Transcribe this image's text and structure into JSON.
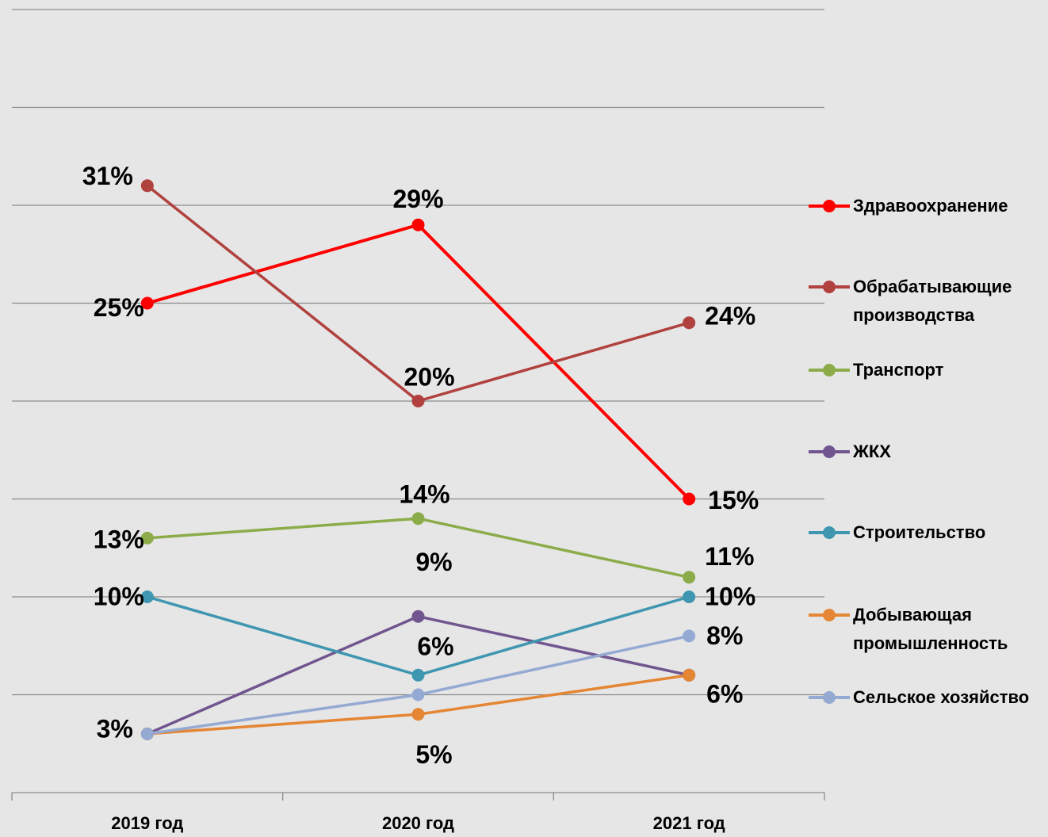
{
  "chart_data": {
    "type": "line",
    "categories": [
      "2019 год",
      "2020 год",
      "2021 год"
    ],
    "ylim": [
      0,
      40
    ],
    "yticks": [
      0,
      5,
      10,
      15,
      20,
      25,
      30,
      35,
      40
    ],
    "grid": true,
    "legend": "right",
    "series": [
      {
        "name": "Здравоохранение",
        "color": "#ff0000",
        "values": [
          25,
          29,
          15
        ],
        "value_labels": [
          "25%",
          "29%",
          "15%"
        ]
      },
      {
        "name": "Обрабатывающие производства",
        "color": "#b0413e",
        "values": [
          31,
          20,
          24
        ],
        "value_labels": [
          "31%",
          "20%",
          "24%"
        ]
      },
      {
        "name": "Транспорт",
        "color": "#8cac4a",
        "values": [
          13,
          14,
          11
        ],
        "value_labels": [
          "13%",
          "14%",
          "11%"
        ]
      },
      {
        "name": "ЖКХ",
        "color": "#71558f",
        "values": [
          3,
          9,
          6
        ],
        "value_labels": [
          null,
          "9%",
          null
        ]
      },
      {
        "name": "Строительство",
        "color": "#3e96b0",
        "values": [
          10,
          6,
          10
        ],
        "value_labels": [
          "10%",
          "6%",
          "10%"
        ]
      },
      {
        "name": "Добывающая промышленность",
        "color": "#e48634",
        "values": [
          3,
          4,
          6
        ],
        "value_labels": [
          null,
          null,
          "6%"
        ]
      },
      {
        "name": "Сельское хозяйство",
        "color": "#94aad3",
        "values": [
          3,
          5,
          8
        ],
        "value_labels": [
          "3%",
          "5%",
          "8%"
        ]
      }
    ]
  }
}
